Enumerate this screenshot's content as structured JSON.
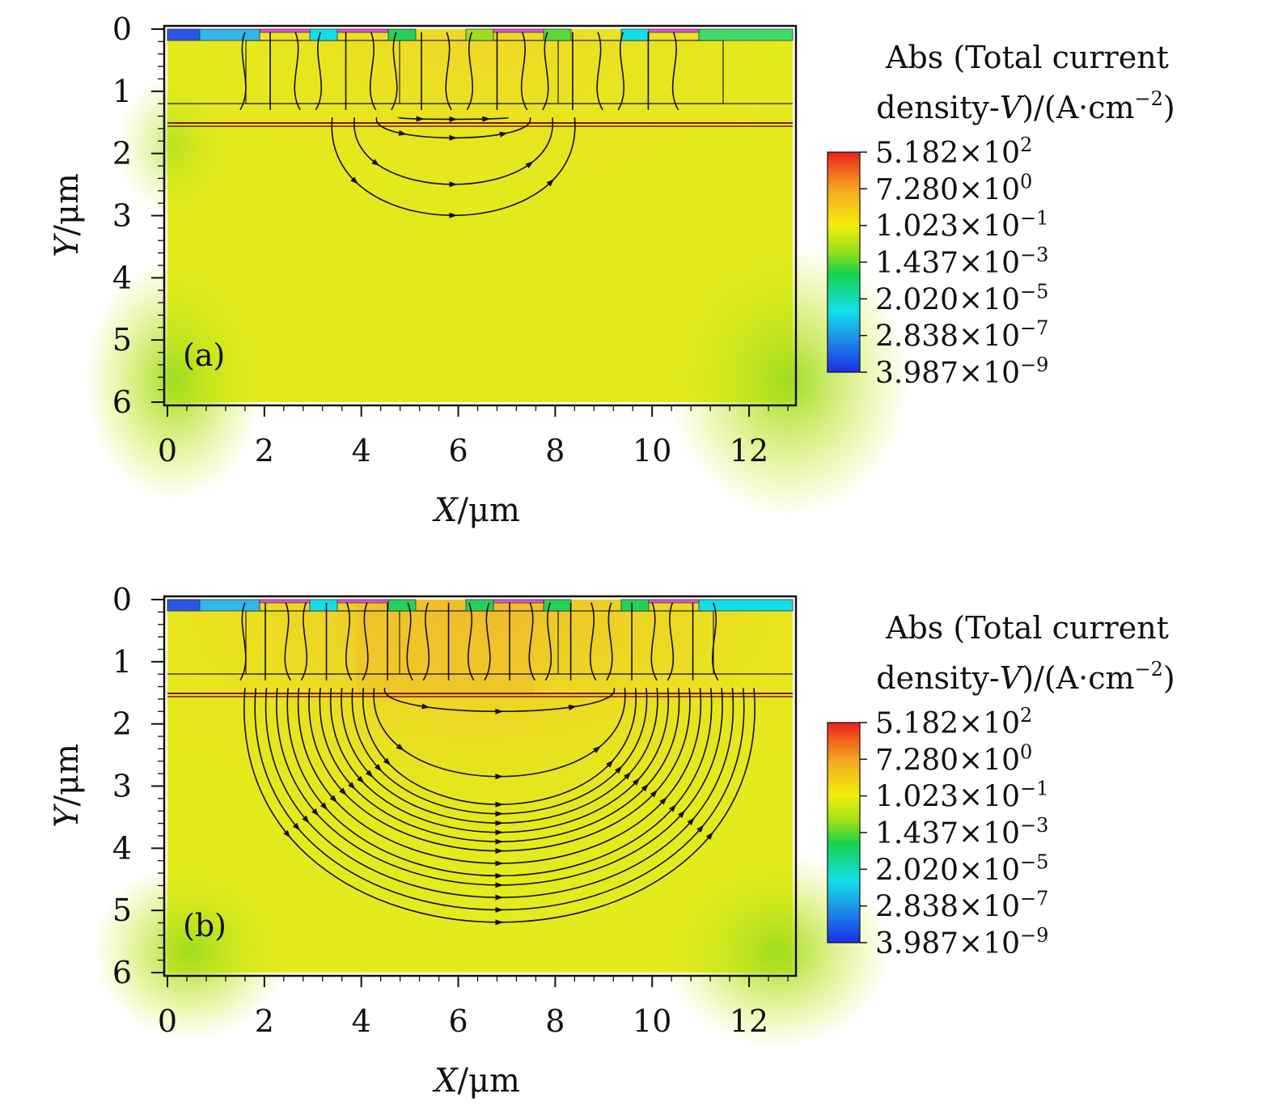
{
  "chart_data": [
    {
      "type": "heatmap",
      "panel_label": "(a)",
      "xlabel_var": "X",
      "xlabel_unit": "/μm",
      "ylabel_var": "Y",
      "ylabel_unit": "/μm",
      "xlim": [
        0,
        12.9
      ],
      "ylim": [
        6,
        0
      ],
      "xticks": [
        "0",
        "2",
        "4",
        "6",
        "8",
        "10",
        "12"
      ],
      "yticks": [
        "0",
        "1",
        "2",
        "3",
        "4",
        "5",
        "6"
      ],
      "legend_title_line1": "Abs (Total current",
      "legend_title_line2_pre": "density-",
      "legend_title_line2_var": "V",
      "legend_title_line2_post": ")/(A·cm",
      "legend_title_exp": "−2",
      "legend_title_close": ")",
      "colorbar": [
        {
          "mantissa": "5.182",
          "exp": "2"
        },
        {
          "mantissa": "7.280",
          "exp": "0"
        },
        {
          "mantissa": "1.023",
          "exp": "−1"
        },
        {
          "mantissa": "1.437",
          "exp": "−3"
        },
        {
          "mantissa": "2.020",
          "exp": "−5"
        },
        {
          "mantissa": "2.838",
          "exp": "−7"
        },
        {
          "mantissa": "3.987",
          "exp": "−9"
        }
      ],
      "colorbar_colors": [
        "#e8201c",
        "#f5a623",
        "#f2ee0b",
        "#9be01a",
        "#17d14a",
        "#13e0e8",
        "#1c2ee6"
      ],
      "streamline_depths_um": [
        1.45,
        1.75,
        2.5,
        3.0
      ],
      "streamline_x_range_um": [
        3.2,
        8.2
      ]
    },
    {
      "type": "heatmap",
      "panel_label": "(b)",
      "xlabel_var": "X",
      "xlabel_unit": "/μm",
      "ylabel_var": "Y",
      "ylabel_unit": "/μm",
      "xlim": [
        0,
        12.9
      ],
      "ylim": [
        6,
        0
      ],
      "xticks": [
        "0",
        "2",
        "4",
        "6",
        "8",
        "10",
        "12"
      ],
      "yticks": [
        "0",
        "1",
        "2",
        "3",
        "4",
        "5",
        "6"
      ],
      "legend_title_line1": "Abs (Total current",
      "legend_title_line2_pre": "density-",
      "legend_title_line2_var": "V",
      "legend_title_line2_post": ")/(A·cm",
      "legend_title_exp": "−2",
      "legend_title_close": ")",
      "colorbar": [
        {
          "mantissa": "5.182",
          "exp": "2"
        },
        {
          "mantissa": "7.280",
          "exp": "0"
        },
        {
          "mantissa": "1.023",
          "exp": "−1"
        },
        {
          "mantissa": "1.437",
          "exp": "−3"
        },
        {
          "mantissa": "2.020",
          "exp": "−5"
        },
        {
          "mantissa": "2.838",
          "exp": "−7"
        },
        {
          "mantissa": "3.987",
          "exp": "−9"
        }
      ],
      "colorbar_colors": [
        "#e8201c",
        "#f5a623",
        "#f2ee0b",
        "#9be01a",
        "#17d14a",
        "#13e0e8",
        "#1c2ee6"
      ],
      "streamline_depths_um": [
        1.8,
        2.85,
        3.3,
        3.45,
        3.6,
        3.75,
        3.9,
        4.05,
        4.25,
        4.45,
        4.6,
        4.8,
        5.0,
        5.2
      ],
      "streamline_x_range_um": [
        1.4,
        11.9
      ]
    }
  ]
}
